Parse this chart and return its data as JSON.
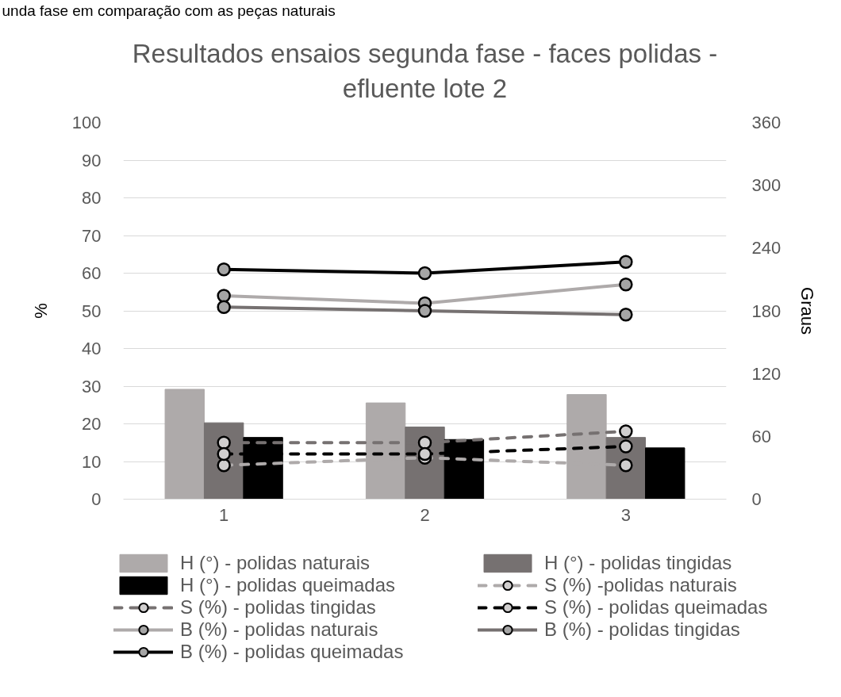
{
  "chart_data": {
    "type": "bar",
    "title": "Resultados ensaios segunda fase - faces polidas - efluente lote 2",
    "ylabel": "%",
    "y2label": "Graus",
    "annotations": [
      "unda fase em comparação com as peças naturais"
    ],
    "categories": [
      "1",
      "2",
      "3"
    ],
    "ylim": [
      0,
      100
    ],
    "yticks": [
      0,
      10,
      20,
      30,
      40,
      50,
      60,
      70,
      80,
      90,
      100
    ],
    "y2lim": [
      0,
      360
    ],
    "y2ticks": [
      0,
      60,
      120,
      180,
      240,
      300,
      360
    ],
    "grid": "y",
    "legend": "bottom",
    "marker": "circle",
    "series": [
      {
        "name": "H (°) - polidas naturais",
        "axis": "y2",
        "color": "#aeaaaa",
        "values": [
          105,
          92,
          100
        ]
      },
      {
        "name": "H (°) - polidas tingidas",
        "axis": "y2",
        "color": "#767171",
        "values": [
          73,
          69,
          59
        ]
      },
      {
        "name": "H (°) - polidas queimadas",
        "axis": "y2",
        "color": "#000000",
        "values": [
          59,
          57,
          49
        ]
      },
      {
        "name": "S (%) -polidas naturais",
        "type": "line",
        "line_style": "dashed",
        "color": "#aeaaaa",
        "values": [
          9,
          11,
          9
        ]
      },
      {
        "name": "S (%) - polidas tingidas",
        "type": "line",
        "line_style": "dashed",
        "color": "#767171",
        "values": [
          15,
          15,
          18
        ]
      },
      {
        "name": "S (%) - polidas queimadas",
        "type": "line",
        "line_style": "dashed",
        "color": "#000000",
        "values": [
          12,
          12,
          14
        ]
      },
      {
        "name": "B (%) - polidas naturais",
        "type": "line",
        "line_style": "solid",
        "color": "#aeaaaa",
        "values": [
          54,
          52,
          57
        ]
      },
      {
        "name": "B (%) - polidas tingidas",
        "type": "line",
        "line_style": "solid",
        "color": "#767171",
        "values": [
          51,
          50,
          49
        ]
      },
      {
        "name": "B (%) - polidas queimadas",
        "type": "line",
        "line_style": "solid",
        "color": "#000000",
        "values": [
          61,
          60,
          63
        ]
      }
    ]
  }
}
